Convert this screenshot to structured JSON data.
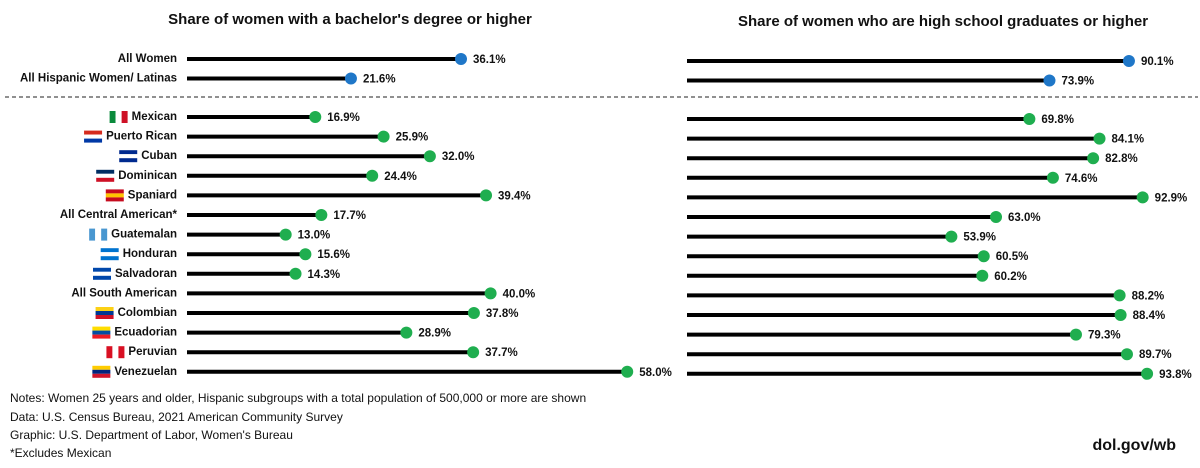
{
  "chart_data": [
    {
      "type": "lollipop",
      "title": "Share of women with a bachelor's degree or higher",
      "categories": [
        "All Women",
        "All Hispanic Women/ Latinas",
        "Mexican",
        "Puerto Rican",
        "Cuban",
        "Dominican",
        "Spaniard",
        "All Central American*",
        "Guatemalan",
        "Honduran",
        "Salvadoran",
        "All South American",
        "Colombian",
        "Ecuadorian",
        "Peruvian",
        "Venezuelan"
      ],
      "values": [
        36.1,
        21.6,
        16.9,
        25.9,
        32.0,
        24.4,
        39.4,
        17.7,
        13.0,
        15.6,
        14.3,
        40.0,
        37.8,
        28.9,
        37.7,
        58.0
      ],
      "value_labels": [
        "36.1%",
        "21.6%",
        "16.9%",
        "25.9%",
        "32.0%",
        "24.4%",
        "39.4%",
        "17.7%",
        "13.0%",
        "15.6%",
        "14.3%",
        "40.0%",
        "37.8%",
        "28.9%",
        "37.7%",
        "58.0%"
      ],
      "colors": [
        "#1f77c8",
        "#1f77c8",
        "#1fae4f",
        "#1fae4f",
        "#1fae4f",
        "#1fae4f",
        "#1fae4f",
        "#1fae4f",
        "#1fae4f",
        "#1fae4f",
        "#1fae4f",
        "#1fae4f",
        "#1fae4f",
        "#1fae4f",
        "#1fae4f",
        "#1fae4f"
      ]
    },
    {
      "type": "lollipop",
      "title": "Share of women who are high school graduates or higher",
      "values": [
        90.1,
        73.9,
        69.8,
        84.1,
        82.8,
        74.6,
        92.9,
        63.0,
        53.9,
        60.5,
        60.2,
        88.2,
        88.4,
        79.3,
        89.7,
        93.8
      ],
      "value_labels": [
        "90.1%",
        "73.9%",
        "69.8%",
        "84.1%",
        "82.8%",
        "74.6%",
        "92.9%",
        "63.0%",
        "53.9%",
        "60.5%",
        "60.2%",
        "88.2%",
        "88.4%",
        "79.3%",
        "89.7%",
        "93.8%"
      ],
      "colors": [
        "#1f77c8",
        "#1f77c8",
        "#1fae4f",
        "#1fae4f",
        "#1fae4f",
        "#1fae4f",
        "#1fae4f",
        "#1fae4f",
        "#1fae4f",
        "#1fae4f",
        "#1fae4f",
        "#1fae4f",
        "#1fae4f",
        "#1fae4f",
        "#1fae4f",
        "#1fae4f"
      ]
    }
  ],
  "notes": [
    "Notes: Women 25 years and older, Hispanic subgroups with a total population of 500,000 or more are shown",
    "Data: U.S. Census Bureau, 2021 American Community Survey",
    "Graphic: U.S. Department of Labor, Women's Bureau",
    "*Excludes Mexican"
  ],
  "source_link": "dol.gov/wb"
}
